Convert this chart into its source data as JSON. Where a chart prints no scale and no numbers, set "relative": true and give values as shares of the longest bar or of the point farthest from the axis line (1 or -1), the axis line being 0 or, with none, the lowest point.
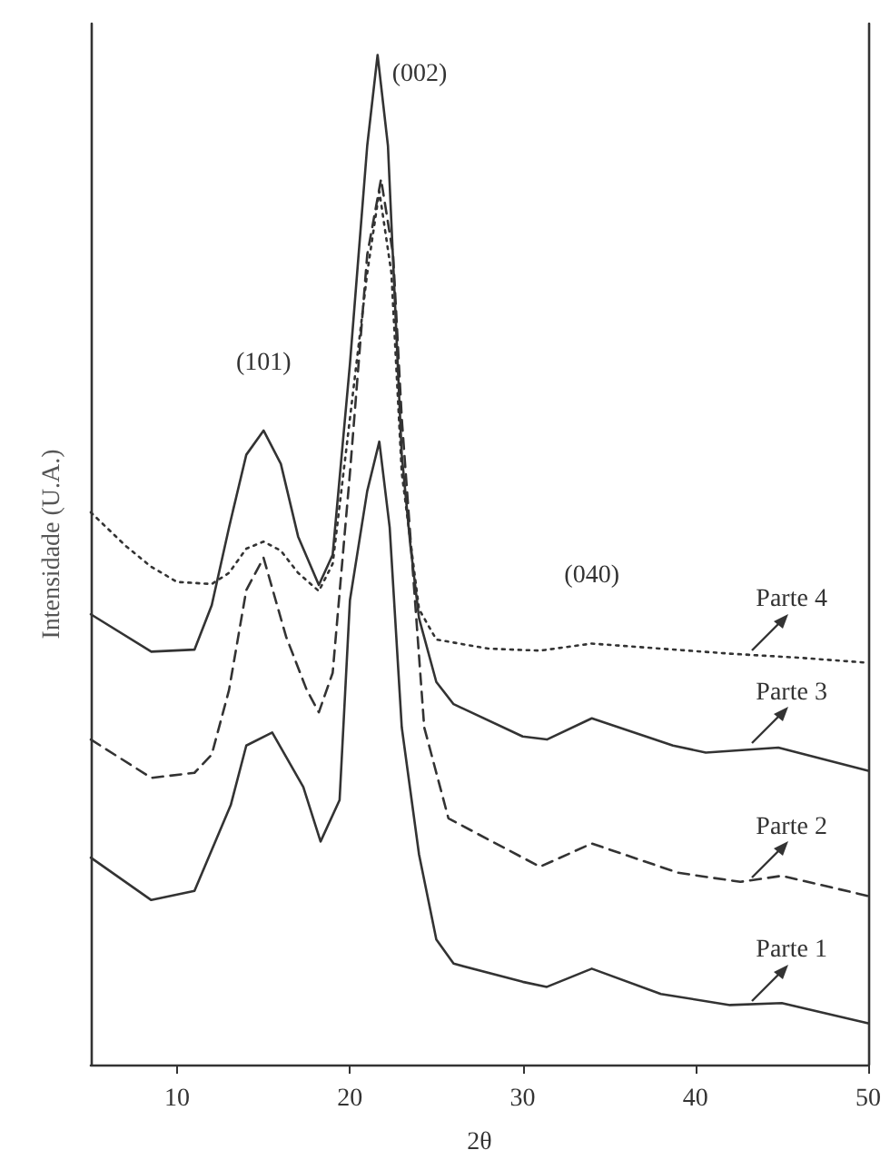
{
  "chart_data": {
    "type": "line",
    "xlabel": "2θ",
    "ylabel": "Intensidade (U.A.)",
    "relative": true,
    "xlim": [
      5,
      50
    ],
    "xticks": [
      10,
      20,
      30,
      40,
      50
    ],
    "grid": false,
    "legend": "right",
    "marker": "none",
    "annotations": [
      {
        "text": "(101)",
        "x": 15,
        "y": 0.628
      },
      {
        "text": "(002)",
        "x": 21.6,
        "y": 1.0
      },
      {
        "text": "(040)",
        "x": 34,
        "y": 0.417
      }
    ],
    "series": [
      {
        "name": "Parte 1",
        "color": "#333333",
        "line_style": "solid",
        "x": [
          5,
          8.5,
          11,
          13.1,
          14,
          15.5,
          17.3,
          18.3,
          19.4,
          20,
          21,
          21.7,
          22.3,
          23,
          24,
          25,
          26,
          30,
          31.4,
          34,
          38,
          42,
          45,
          50
        ],
        "values": [
          0.205,
          0.163,
          0.172,
          0.257,
          0.316,
          0.329,
          0.275,
          0.221,
          0.262,
          0.46,
          0.568,
          0.617,
          0.532,
          0.334,
          0.208,
          0.124,
          0.1,
          0.082,
          0.077,
          0.095,
          0.07,
          0.059,
          0.061,
          0.041
        ]
      },
      {
        "name": "Parte 2",
        "color": "#333333",
        "line_style": "dashed",
        "x": [
          5,
          8.5,
          11,
          12,
          13,
          14,
          15,
          16.3,
          17.5,
          18.2,
          19,
          20,
          21,
          21.8,
          22.5,
          23,
          24.3,
          25.7,
          28,
          31,
          34,
          39,
          42.6,
          45,
          50
        ],
        "values": [
          0.322,
          0.284,
          0.289,
          0.307,
          0.371,
          0.47,
          0.502,
          0.424,
          0.371,
          0.349,
          0.388,
          0.586,
          0.802,
          0.877,
          0.802,
          0.64,
          0.334,
          0.244,
          0.223,
          0.196,
          0.219,
          0.19,
          0.181,
          0.187,
          0.167
        ]
      },
      {
        "name": "Parte 3",
        "color": "#333333",
        "line_style": "solid",
        "x": [
          5,
          8.5,
          11,
          12,
          13,
          14,
          15,
          16,
          17,
          18.2,
          19,
          20,
          21,
          21.6,
          22.2,
          23,
          23.5,
          24,
          25,
          26,
          30,
          31.4,
          34,
          38.7,
          40.6,
          44.8,
          50
        ],
        "values": [
          0.446,
          0.409,
          0.411,
          0.455,
          0.532,
          0.604,
          0.628,
          0.595,
          0.523,
          0.475,
          0.505,
          0.694,
          0.91,
          1.0,
          0.91,
          0.604,
          0.514,
          0.442,
          0.379,
          0.357,
          0.325,
          0.322,
          0.343,
          0.316,
          0.309,
          0.314,
          0.291
        ]
      },
      {
        "name": "Parte 4",
        "color": "#333333",
        "line_style": "dotted",
        "x": [
          5,
          7,
          8.5,
          10,
          12,
          13,
          14,
          15,
          16,
          17,
          18.2,
          19,
          20,
          21,
          21.7,
          22.4,
          23,
          24,
          25,
          28,
          31,
          34,
          38,
          42,
          46,
          50
        ],
        "values": [
          0.547,
          0.514,
          0.493,
          0.478,
          0.476,
          0.487,
          0.511,
          0.518,
          0.509,
          0.487,
          0.469,
          0.496,
          0.64,
          0.784,
          0.865,
          0.784,
          0.586,
          0.451,
          0.421,
          0.412,
          0.41,
          0.417,
          0.412,
          0.407,
          0.403,
          0.398
        ]
      }
    ]
  }
}
